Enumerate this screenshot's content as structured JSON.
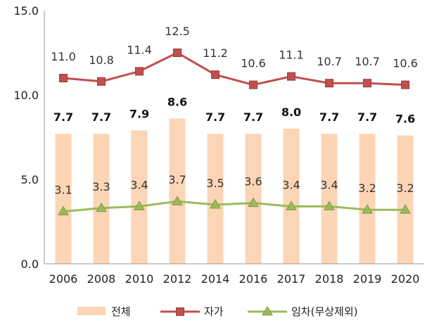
{
  "chart_data": {
    "type": "bar",
    "categories": [
      "2006",
      "2008",
      "2010",
      "2012",
      "2014",
      "2016",
      "2017",
      "2018",
      "2019",
      "2020"
    ],
    "ylim": [
      0,
      15
    ],
    "y_ticks": [
      "0.0",
      "5.0",
      "10.0",
      "15.0"
    ],
    "grid": false,
    "legend_position": "bottom",
    "series": [
      {
        "name": "전체",
        "kind": "bar",
        "color": "#fbd5b5",
        "values": [
          7.7,
          7.7,
          7.9,
          8.6,
          7.7,
          7.7,
          8.0,
          7.7,
          7.7,
          7.6
        ],
        "labels": [
          "7.7",
          "7.7",
          "7.9",
          "8.6",
          "7.7",
          "7.7",
          "8.0",
          "7.7",
          "7.7",
          "7.6"
        ]
      },
      {
        "name": "자가",
        "kind": "line",
        "color": "#c0504d",
        "values": [
          11.0,
          10.8,
          11.4,
          12.5,
          11.2,
          10.6,
          11.1,
          10.7,
          10.7,
          10.6
        ],
        "labels": [
          "11.0",
          "10.8",
          "11.4",
          "12.5",
          "11.2",
          "10.6",
          "11.1",
          "10.7",
          "10.7",
          "10.6"
        ]
      },
      {
        "name": "임차(무상제외)",
        "kind": "line",
        "color": "#9bbb59",
        "values": [
          3.1,
          3.3,
          3.4,
          3.7,
          3.5,
          3.6,
          3.4,
          3.4,
          3.2,
          3.2
        ],
        "labels": [
          "3.1",
          "3.3",
          "3.4",
          "3.7",
          "3.5",
          "3.6",
          "3.4",
          "3.4",
          "3.2",
          "3.2"
        ]
      }
    ]
  }
}
